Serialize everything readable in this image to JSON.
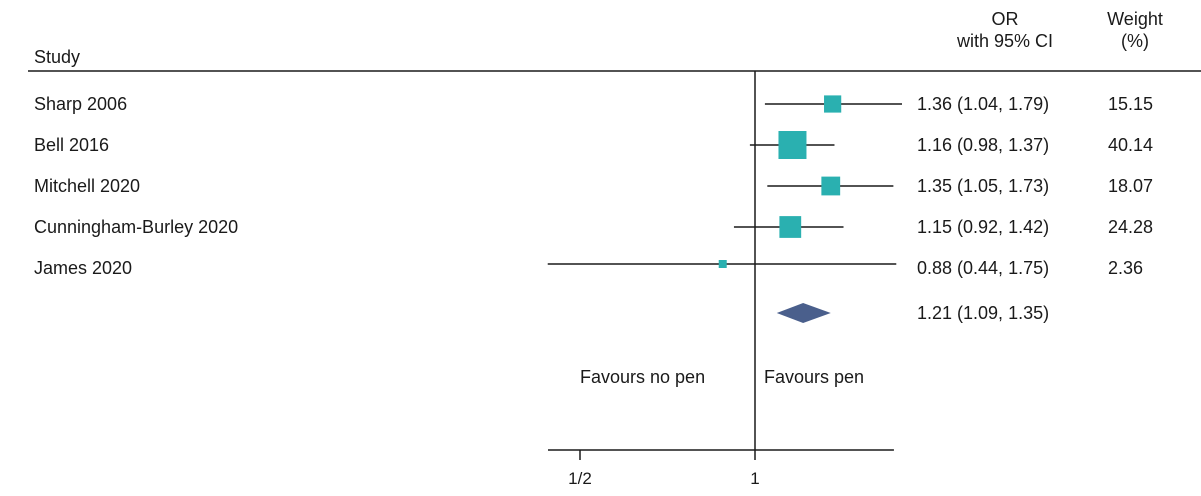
{
  "header": {
    "study_label": "Study",
    "or_label_1": "OR",
    "or_label_2": "with 95% CI",
    "weight_label_1": "Weight",
    "weight_label_2": "(%)"
  },
  "colors": {
    "study_marker": "#2ab0b0",
    "pooled_marker": "#4a5f8c",
    "line": "#1a1a1a"
  },
  "chart_data": {
    "type": "forest",
    "scale": "log",
    "null_value": 1,
    "x_ticks": [
      {
        "value": 0.5,
        "label": "1/2"
      },
      {
        "value": 1,
        "label": "1"
      }
    ],
    "xlim": [
      0.5,
      1.72
    ],
    "studies": [
      {
        "name": "Sharp 2006",
        "or": 1.36,
        "lo": 1.04,
        "hi": 1.79,
        "weight": 15.15,
        "or_text": "1.36 (1.04, 1.79)",
        "weight_text": "15.15"
      },
      {
        "name": "Bell 2016",
        "or": 1.16,
        "lo": 0.98,
        "hi": 1.37,
        "weight": 40.14,
        "or_text": "1.16 (0.98, 1.37)",
        "weight_text": "40.14"
      },
      {
        "name": "Mitchell 2020",
        "or": 1.35,
        "lo": 1.05,
        "hi": 1.73,
        "weight": 18.07,
        "or_text": "1.35 (1.05, 1.73)",
        "weight_text": "18.07"
      },
      {
        "name": "Cunningham-Burley 2020",
        "or": 1.15,
        "lo": 0.92,
        "hi": 1.42,
        "weight": 24.28,
        "or_text": "1.15 (0.92, 1.42)",
        "weight_text": "24.28"
      },
      {
        "name": "James 2020",
        "or": 0.88,
        "lo": 0.44,
        "hi": 1.75,
        "weight": 2.36,
        "or_text": "0.88 (0.44, 1.75)",
        "weight_text": "2.36"
      }
    ],
    "pooled": {
      "or": 1.21,
      "lo": 1.09,
      "hi": 1.35,
      "or_text": "1.21 (1.09, 1.35)"
    },
    "annotations": {
      "left": "Favours no pen",
      "right": "Favours pen"
    }
  }
}
